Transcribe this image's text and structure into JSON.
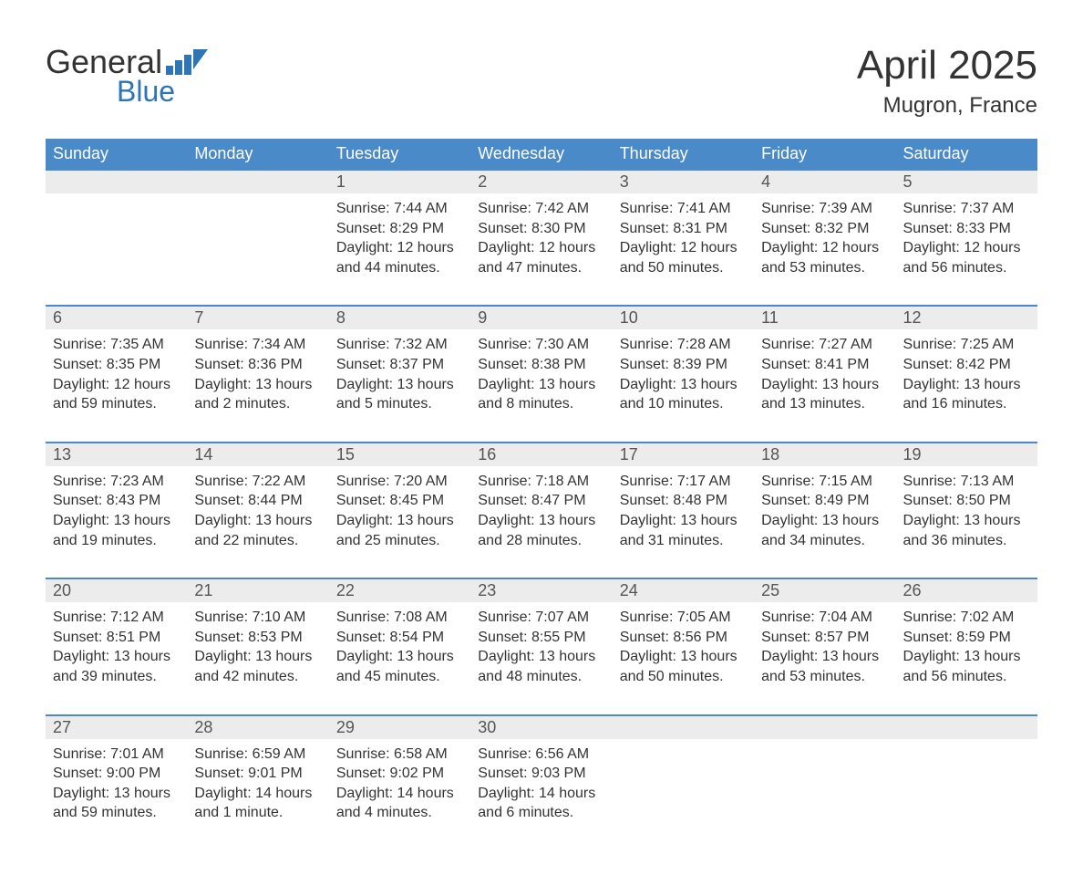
{
  "logo": {
    "general": "General",
    "blue": "Blue"
  },
  "title": "April 2025",
  "location": "Mugron, France",
  "colors": {
    "header_bg": "#4a8ac9",
    "header_text": "#ffffff",
    "daynum_bg": "#ececec",
    "accent_border": "#4a8ac9",
    "body_text": "#333333",
    "logo_blue": "#2e75b6"
  },
  "days_of_week": [
    "Sunday",
    "Monday",
    "Tuesday",
    "Wednesday",
    "Thursday",
    "Friday",
    "Saturday"
  ],
  "weeks": [
    {
      "nums": [
        "",
        "",
        "1",
        "2",
        "3",
        "4",
        "5"
      ],
      "cells": [
        null,
        null,
        {
          "sunrise": "Sunrise: 7:44 AM",
          "sunset": "Sunset: 8:29 PM",
          "d1": "Daylight: 12 hours",
          "d2": "and 44 minutes."
        },
        {
          "sunrise": "Sunrise: 7:42 AM",
          "sunset": "Sunset: 8:30 PM",
          "d1": "Daylight: 12 hours",
          "d2": "and 47 minutes."
        },
        {
          "sunrise": "Sunrise: 7:41 AM",
          "sunset": "Sunset: 8:31 PM",
          "d1": "Daylight: 12 hours",
          "d2": "and 50 minutes."
        },
        {
          "sunrise": "Sunrise: 7:39 AM",
          "sunset": "Sunset: 8:32 PM",
          "d1": "Daylight: 12 hours",
          "d2": "and 53 minutes."
        },
        {
          "sunrise": "Sunrise: 7:37 AM",
          "sunset": "Sunset: 8:33 PM",
          "d1": "Daylight: 12 hours",
          "d2": "and 56 minutes."
        }
      ]
    },
    {
      "nums": [
        "6",
        "7",
        "8",
        "9",
        "10",
        "11",
        "12"
      ],
      "cells": [
        {
          "sunrise": "Sunrise: 7:35 AM",
          "sunset": "Sunset: 8:35 PM",
          "d1": "Daylight: 12 hours",
          "d2": "and 59 minutes."
        },
        {
          "sunrise": "Sunrise: 7:34 AM",
          "sunset": "Sunset: 8:36 PM",
          "d1": "Daylight: 13 hours",
          "d2": "and 2 minutes."
        },
        {
          "sunrise": "Sunrise: 7:32 AM",
          "sunset": "Sunset: 8:37 PM",
          "d1": "Daylight: 13 hours",
          "d2": "and 5 minutes."
        },
        {
          "sunrise": "Sunrise: 7:30 AM",
          "sunset": "Sunset: 8:38 PM",
          "d1": "Daylight: 13 hours",
          "d2": "and 8 minutes."
        },
        {
          "sunrise": "Sunrise: 7:28 AM",
          "sunset": "Sunset: 8:39 PM",
          "d1": "Daylight: 13 hours",
          "d2": "and 10 minutes."
        },
        {
          "sunrise": "Sunrise: 7:27 AM",
          "sunset": "Sunset: 8:41 PM",
          "d1": "Daylight: 13 hours",
          "d2": "and 13 minutes."
        },
        {
          "sunrise": "Sunrise: 7:25 AM",
          "sunset": "Sunset: 8:42 PM",
          "d1": "Daylight: 13 hours",
          "d2": "and 16 minutes."
        }
      ]
    },
    {
      "nums": [
        "13",
        "14",
        "15",
        "16",
        "17",
        "18",
        "19"
      ],
      "cells": [
        {
          "sunrise": "Sunrise: 7:23 AM",
          "sunset": "Sunset: 8:43 PM",
          "d1": "Daylight: 13 hours",
          "d2": "and 19 minutes."
        },
        {
          "sunrise": "Sunrise: 7:22 AM",
          "sunset": "Sunset: 8:44 PM",
          "d1": "Daylight: 13 hours",
          "d2": "and 22 minutes."
        },
        {
          "sunrise": "Sunrise: 7:20 AM",
          "sunset": "Sunset: 8:45 PM",
          "d1": "Daylight: 13 hours",
          "d2": "and 25 minutes."
        },
        {
          "sunrise": "Sunrise: 7:18 AM",
          "sunset": "Sunset: 8:47 PM",
          "d1": "Daylight: 13 hours",
          "d2": "and 28 minutes."
        },
        {
          "sunrise": "Sunrise: 7:17 AM",
          "sunset": "Sunset: 8:48 PM",
          "d1": "Daylight: 13 hours",
          "d2": "and 31 minutes."
        },
        {
          "sunrise": "Sunrise: 7:15 AM",
          "sunset": "Sunset: 8:49 PM",
          "d1": "Daylight: 13 hours",
          "d2": "and 34 minutes."
        },
        {
          "sunrise": "Sunrise: 7:13 AM",
          "sunset": "Sunset: 8:50 PM",
          "d1": "Daylight: 13 hours",
          "d2": "and 36 minutes."
        }
      ]
    },
    {
      "nums": [
        "20",
        "21",
        "22",
        "23",
        "24",
        "25",
        "26"
      ],
      "cells": [
        {
          "sunrise": "Sunrise: 7:12 AM",
          "sunset": "Sunset: 8:51 PM",
          "d1": "Daylight: 13 hours",
          "d2": "and 39 minutes."
        },
        {
          "sunrise": "Sunrise: 7:10 AM",
          "sunset": "Sunset: 8:53 PM",
          "d1": "Daylight: 13 hours",
          "d2": "and 42 minutes."
        },
        {
          "sunrise": "Sunrise: 7:08 AM",
          "sunset": "Sunset: 8:54 PM",
          "d1": "Daylight: 13 hours",
          "d2": "and 45 minutes."
        },
        {
          "sunrise": "Sunrise: 7:07 AM",
          "sunset": "Sunset: 8:55 PM",
          "d1": "Daylight: 13 hours",
          "d2": "and 48 minutes."
        },
        {
          "sunrise": "Sunrise: 7:05 AM",
          "sunset": "Sunset: 8:56 PM",
          "d1": "Daylight: 13 hours",
          "d2": "and 50 minutes."
        },
        {
          "sunrise": "Sunrise: 7:04 AM",
          "sunset": "Sunset: 8:57 PM",
          "d1": "Daylight: 13 hours",
          "d2": "and 53 minutes."
        },
        {
          "sunrise": "Sunrise: 7:02 AM",
          "sunset": "Sunset: 8:59 PM",
          "d1": "Daylight: 13 hours",
          "d2": "and 56 minutes."
        }
      ]
    },
    {
      "nums": [
        "27",
        "28",
        "29",
        "30",
        "",
        "",
        ""
      ],
      "cells": [
        {
          "sunrise": "Sunrise: 7:01 AM",
          "sunset": "Sunset: 9:00 PM",
          "d1": "Daylight: 13 hours",
          "d2": "and 59 minutes."
        },
        {
          "sunrise": "Sunrise: 6:59 AM",
          "sunset": "Sunset: 9:01 PM",
          "d1": "Daylight: 14 hours",
          "d2": "and 1 minute."
        },
        {
          "sunrise": "Sunrise: 6:58 AM",
          "sunset": "Sunset: 9:02 PM",
          "d1": "Daylight: 14 hours",
          "d2": "and 4 minutes."
        },
        {
          "sunrise": "Sunrise: 6:56 AM",
          "sunset": "Sunset: 9:03 PM",
          "d1": "Daylight: 14 hours",
          "d2": "and 6 minutes."
        },
        null,
        null,
        null
      ]
    }
  ]
}
